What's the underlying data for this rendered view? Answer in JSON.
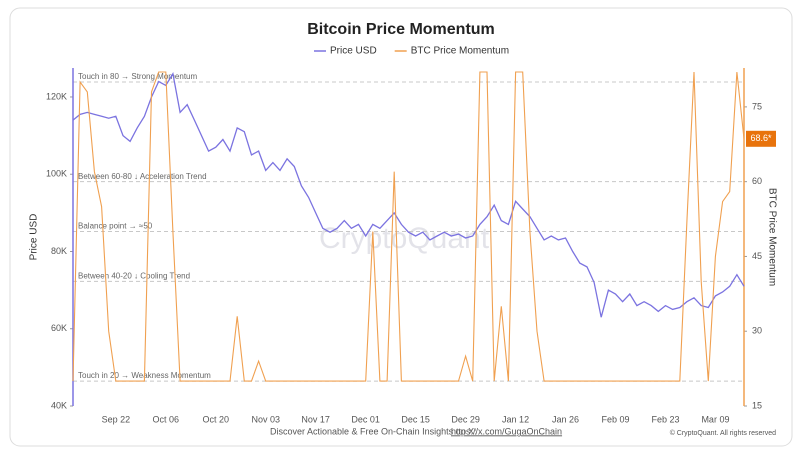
{
  "chart_data": {
    "type": "line",
    "title": "Bitcoin Price Momentum",
    "categories": [
      null,
      null,
      null,
      null,
      null,
      null,
      "Sep 22",
      null,
      null,
      null,
      null,
      null,
      null,
      "Oct 06",
      null,
      null,
      null,
      null,
      null,
      null,
      "Oct 20",
      null,
      null,
      null,
      null,
      null,
      null,
      "Nov 03",
      null,
      null,
      null,
      null,
      null,
      null,
      "Nov 17",
      null,
      null,
      null,
      null,
      null,
      null,
      "Dec 01",
      null,
      null,
      null,
      null,
      null,
      null,
      "Dec 15",
      null,
      null,
      null,
      null,
      null,
      null,
      "Dec 29",
      null,
      null,
      null,
      null,
      null,
      null,
      "Jan 12",
      null,
      null,
      null,
      null,
      null,
      null,
      "Jan 26",
      null,
      null,
      null,
      null,
      null,
      null,
      "Feb 09",
      null,
      null,
      null,
      null,
      null,
      null,
      "Feb 23",
      null,
      null,
      null,
      null,
      null,
      null,
      "Mar 09",
      null,
      null,
      null,
      null
    ],
    "series": [
      {
        "name": "Price USD",
        "color": "#7b73e0",
        "values": [
          114000,
          115500,
          116000,
          115500,
          115000,
          114500,
          115000,
          110000,
          108500,
          112000,
          115000,
          120000,
          124000,
          123000,
          126000,
          116000,
          118000,
          114000,
          110000,
          106000,
          107000,
          109000,
          106000,
          112000,
          111000,
          105000,
          106000,
          101000,
          103000,
          101000,
          104000,
          102000,
          97000,
          94000,
          90000,
          86000,
          85000,
          86000,
          88000,
          86000,
          87000,
          84000,
          87000,
          86000,
          88000,
          90000,
          87000,
          85000,
          84000,
          85000,
          83000,
          84000,
          85000,
          84000,
          84500,
          83500,
          84000,
          87000,
          89000,
          92000,
          88000,
          87000,
          93000,
          91000,
          89000,
          86000,
          83000,
          84000,
          83000,
          83500,
          80000,
          77000,
          76000,
          72000,
          63000,
          70000,
          69000,
          67000,
          69000,
          66000,
          67000,
          66000,
          64500,
          66000,
          65000,
          65500,
          67000,
          68000,
          66000,
          65500,
          68500,
          69500,
          71000,
          74000,
          71000
        ]
      },
      {
        "name": "BTC Price Momentum",
        "color": "#f0a050",
        "axis": "y2",
        "values": [
          20,
          80,
          78,
          62,
          55,
          30,
          20,
          20,
          20,
          20,
          20,
          78,
          82,
          82,
          50,
          20,
          20,
          20,
          20,
          20,
          20,
          20,
          20,
          33,
          20,
          20,
          24,
          20,
          20,
          20,
          20,
          20,
          20,
          20,
          20,
          20,
          20,
          20,
          20,
          20,
          20,
          20,
          50,
          20,
          20,
          62,
          20,
          20,
          20,
          20,
          20,
          20,
          20,
          20,
          20,
          25,
          20,
          82,
          82,
          20,
          35,
          20,
          82,
          82,
          50,
          30,
          20,
          20,
          20,
          20,
          20,
          20,
          20,
          20,
          20,
          20,
          20,
          20,
          20,
          20,
          20,
          20,
          20,
          20,
          20,
          20,
          52,
          82,
          40,
          20,
          45,
          56,
          58,
          82,
          68.6
        ]
      }
    ],
    "ylabel": "Price USD",
    "y2label": "BTC Price Momentum",
    "ylim": [
      40000,
      127500
    ],
    "yticks": [
      {
        "value": 40000,
        "label": "40K"
      },
      {
        "value": 60000,
        "label": "60K"
      },
      {
        "value": 80000,
        "label": "80K"
      },
      {
        "value": 100000,
        "label": "100K"
      },
      {
        "value": 120000,
        "label": "120K"
      }
    ],
    "y2lim": [
      15,
      82.8
    ],
    "y2ticks": [
      15,
      30,
      45,
      60,
      75
    ],
    "reference_lines": [
      {
        "value": 80,
        "text": "Touch in 80 → Strong Momentum"
      },
      {
        "value": 60,
        "text": "Between 60-80 ↓ Acceleration Trend"
      },
      {
        "value": 50,
        "text": "Balance point → ≈50"
      },
      {
        "value": 40,
        "text": "Between 40-20 ↓ Cooling Trend"
      },
      {
        "value": 20,
        "text": "Touch in 20 → Weakness Momentum"
      }
    ],
    "last_value_tag": {
      "value": 68.6,
      "label": "68.6*"
    },
    "watermark": "CryptoQuant",
    "footer_text": "Discover Actionable & Free On-Chain Insights on X:",
    "footer_link": "https://x.com/GugaOnChain",
    "copyright": "© CryptoQuant. All rights reserved"
  }
}
